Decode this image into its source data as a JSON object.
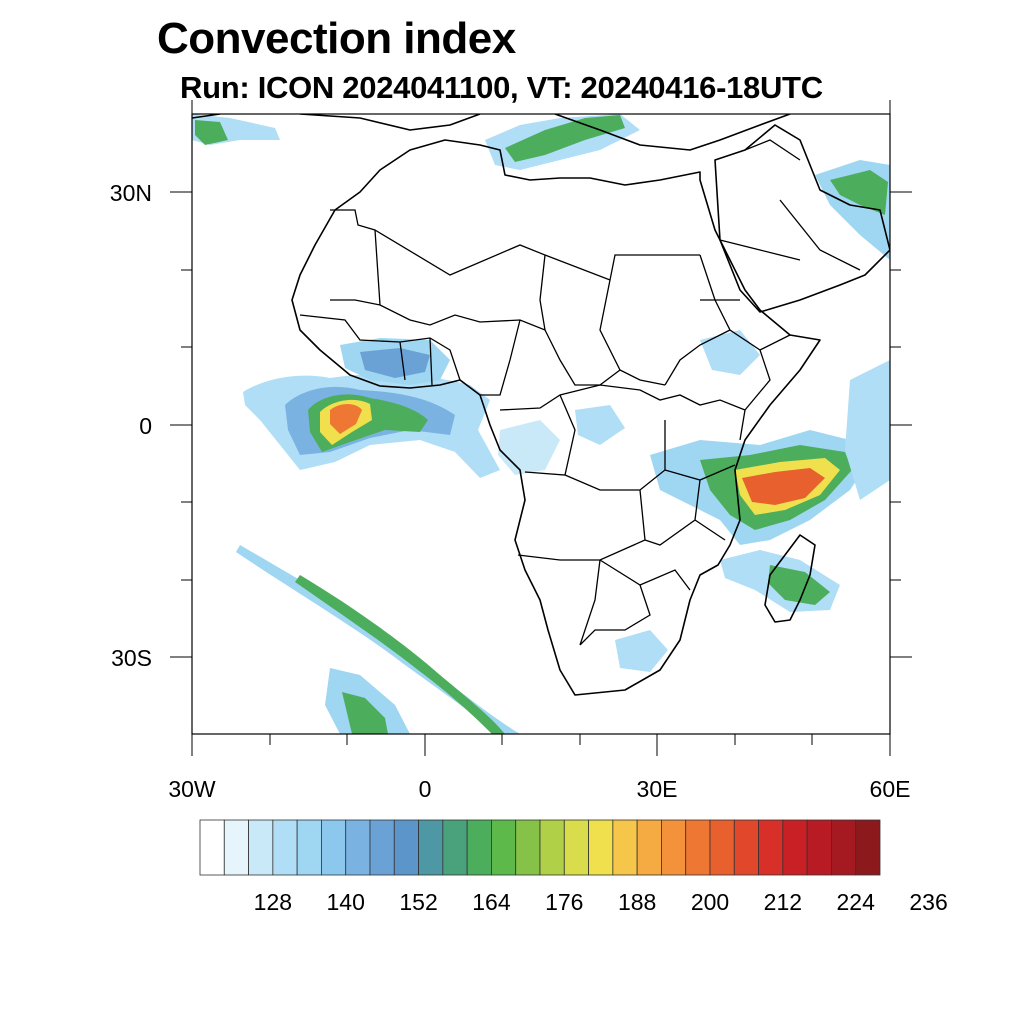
{
  "title": "Convection index",
  "subtitle": "Run: ICON 2024041100,  VT: 20240416-18UTC",
  "axes": {
    "lat_labels": [
      "30N",
      "0",
      "30S"
    ],
    "lon_labels": [
      "30W",
      "0",
      "30E",
      "60E"
    ]
  },
  "colorbar": {
    "labels": [
      "128",
      "140",
      "152",
      "164",
      "176",
      "188",
      "200",
      "212",
      "224",
      "236"
    ],
    "colors": [
      "#ffffff",
      "#e6f4fc",
      "#c9e8f8",
      "#b0def6",
      "#9fd6f2",
      "#8cc8ee",
      "#7ab3e2",
      "#6aa2d6",
      "#5b95ca",
      "#4e97a4",
      "#4aa27c",
      "#4cae5c",
      "#5cb94a",
      "#86c247",
      "#b0d047",
      "#d9dd4c",
      "#f1e04d",
      "#f6c64a",
      "#f5ab42",
      "#f3923b",
      "#ef7734",
      "#e8602e",
      "#e1482b",
      "#d83029",
      "#c92026",
      "#b81b24",
      "#a51a21",
      "#8c1a1d"
    ]
  }
}
